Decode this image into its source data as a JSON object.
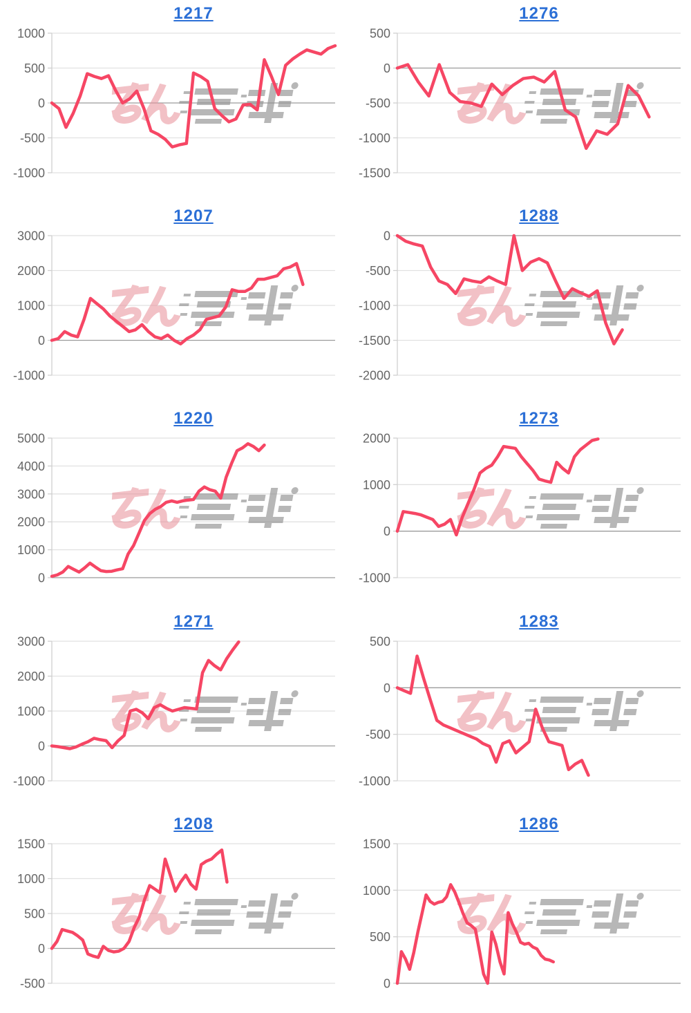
{
  "page": {
    "background": "#ffffff",
    "grid": "2 columns x 5 rows of slump line charts"
  },
  "styles": {
    "line_color": "#f64664",
    "title_link_color": "#2b6fd6",
    "tick_label_color": "#666666",
    "grid_color": "#e1e1e1",
    "zero_line_color": "#9b9b9b",
    "axis_line_color": "#cfcfcf",
    "watermark_pink": "#e98f99",
    "watermark_gray": "#8c8c8c"
  },
  "watermark": {
    "text": "みんレポ",
    "style": "italic pink kana + gray speed-line katakana logo, repeated on every chart"
  },
  "chart_data": [
    {
      "type": "line",
      "title": "1217",
      "xlabel": "",
      "ylabel": "",
      "ylim": [
        -1000,
        1000
      ],
      "yticks": [
        1000,
        500,
        0,
        -500,
        -1000
      ],
      "grid": true,
      "legend": "none",
      "x_slots": 41,
      "values": [
        0,
        -80,
        -350,
        -150,
        100,
        420,
        380,
        350,
        390,
        180,
        0,
        60,
        170,
        -80,
        -400,
        -450,
        -520,
        -630,
        -600,
        -580,
        430,
        380,
        310,
        -80,
        -180,
        -270,
        -230,
        -30,
        -20,
        -100,
        620,
        380,
        120,
        540,
        630,
        700,
        760,
        730,
        700,
        780,
        820
      ]
    },
    {
      "type": "line",
      "title": "1276",
      "xlabel": "",
      "ylabel": "",
      "ylim": [
        -1500,
        500
      ],
      "yticks": [
        500,
        0,
        -500,
        -1000,
        -1500
      ],
      "grid": true,
      "legend": "none",
      "x_slots": 28,
      "values": [
        0,
        50,
        -200,
        -400,
        50,
        -350,
        -480,
        -500,
        -550,
        -230,
        -380,
        -250,
        -150,
        -130,
        -200,
        -50,
        -600,
        -700,
        -1150,
        -900,
        -950,
        -800,
        -250,
        -400,
        -700
      ]
    },
    {
      "type": "line",
      "title": "1207",
      "xlabel": "",
      "ylabel": "",
      "ylim": [
        -1000,
        3000
      ],
      "yticks": [
        3000,
        2000,
        1000,
        0,
        -1000
      ],
      "grid": true,
      "legend": "none",
      "x_slots": 45,
      "values": [
        0,
        50,
        250,
        150,
        100,
        600,
        1200,
        1050,
        900,
        700,
        550,
        400,
        250,
        300,
        450,
        250,
        100,
        50,
        150,
        0,
        -100,
        50,
        150,
        300,
        600,
        650,
        700,
        950,
        1450,
        1400,
        1400,
        1500,
        1750,
        1750,
        1800,
        1850,
        2050,
        2100,
        2200,
        1600
      ]
    },
    {
      "type": "line",
      "title": "1288",
      "xlabel": "",
      "ylabel": "",
      "ylim": [
        -2000,
        0
      ],
      "yticks": [
        0,
        -500,
        -1000,
        -1500,
        -2000
      ],
      "grid": true,
      "legend": "none",
      "x_slots": 35,
      "values": [
        0,
        -80,
        -120,
        -150,
        -450,
        -650,
        -700,
        -830,
        -620,
        -650,
        -670,
        -590,
        -650,
        -700,
        0,
        -500,
        -380,
        -330,
        -390,
        -650,
        -900,
        -760,
        -820,
        -870,
        -790,
        -1250,
        -1550,
        -1350
      ]
    },
    {
      "type": "line",
      "title": "1220",
      "xlabel": "",
      "ylabel": "",
      "ylim": [
        0,
        5000
      ],
      "yticks": [
        5000,
        4000,
        3000,
        2000,
        1000,
        0
      ],
      "grid": true,
      "legend": "none",
      "x_slots": 53,
      "values": [
        50,
        100,
        200,
        400,
        300,
        200,
        350,
        520,
        380,
        250,
        220,
        230,
        280,
        320,
        850,
        1150,
        1600,
        2050,
        2300,
        2450,
        2550,
        2700,
        2750,
        2700,
        2750,
        2780,
        2800,
        3100,
        3250,
        3150,
        3100,
        2850,
        3600,
        4100,
        4550,
        4650,
        4800,
        4700,
        4550,
        4750
      ]
    },
    {
      "type": "line",
      "title": "1273",
      "xlabel": "",
      "ylabel": "",
      "ylim": [
        -1000,
        2000
      ],
      "yticks": [
        2000,
        1000,
        0,
        -1000
      ],
      "grid": true,
      "legend": "none",
      "x_slots": 49,
      "values": [
        0,
        420,
        400,
        380,
        350,
        300,
        250,
        100,
        150,
        250,
        -80,
        300,
        600,
        900,
        1250,
        1350,
        1420,
        1600,
        1820,
        1800,
        1780,
        1600,
        1450,
        1300,
        1120,
        1080,
        1050,
        1480,
        1350,
        1250,
        1600,
        1750,
        1850,
        1950,
        1980
      ]
    },
    {
      "type": "line",
      "title": "1271",
      "xlabel": "",
      "ylabel": "",
      "ylim": [
        -1000,
        3000
      ],
      "yticks": [
        3000,
        2000,
        1000,
        0,
        -1000
      ],
      "grid": true,
      "legend": "none",
      "x_slots": 48,
      "values": [
        0,
        -20,
        -50,
        -80,
        -30,
        50,
        120,
        220,
        180,
        150,
        -50,
        150,
        300,
        1000,
        1050,
        950,
        780,
        1100,
        1180,
        1080,
        1000,
        1050,
        1100,
        1080,
        1060,
        2100,
        2450,
        2300,
        2180,
        2500,
        2750,
        2980
      ]
    },
    {
      "type": "line",
      "title": "1283",
      "xlabel": "",
      "ylabel": "",
      "ylim": [
        -1000,
        500
      ],
      "yticks": [
        500,
        0,
        -500,
        -1000
      ],
      "grid": true,
      "legend": "none",
      "x_slots": 44,
      "values": [
        0,
        -30,
        -60,
        340,
        100,
        -130,
        -350,
        -400,
        -430,
        -460,
        -490,
        -520,
        -550,
        -600,
        -630,
        -800,
        -600,
        -570,
        -700,
        -640,
        -580,
        -230,
        -430,
        -580,
        -600,
        -620,
        -880,
        -820,
        -780,
        -940
      ]
    },
    {
      "type": "line",
      "title": "1208",
      "xlabel": "",
      "ylabel": "",
      "ylim": [
        -500,
        1500
      ],
      "yticks": [
        1500,
        1000,
        500,
        0,
        -500
      ],
      "grid": true,
      "legend": "none",
      "x_slots": 56,
      "values": [
        0,
        100,
        270,
        250,
        230,
        180,
        120,
        -80,
        -110,
        -130,
        30,
        -30,
        -50,
        -40,
        0,
        100,
        300,
        450,
        700,
        900,
        850,
        800,
        1280,
        1050,
        820,
        950,
        1050,
        920,
        850,
        1200,
        1250,
        1280,
        1350,
        1410,
        950
      ]
    },
    {
      "type": "line",
      "title": "1286",
      "xlabel": "",
      "ylabel": "",
      "ylim": [
        0,
        1500
      ],
      "yticks": [
        1500,
        1000,
        500,
        0
      ],
      "grid": true,
      "legend": "none",
      "x_slots": 70,
      "values": [
        0,
        340,
        260,
        150,
        330,
        550,
        750,
        950,
        880,
        850,
        870,
        880,
        930,
        1060,
        980,
        870,
        750,
        650,
        620,
        580,
        350,
        100,
        0,
        550,
        420,
        230,
        100,
        760,
        640,
        550,
        440,
        420,
        430,
        390,
        370,
        300,
        260,
        250,
        230
      ]
    }
  ]
}
